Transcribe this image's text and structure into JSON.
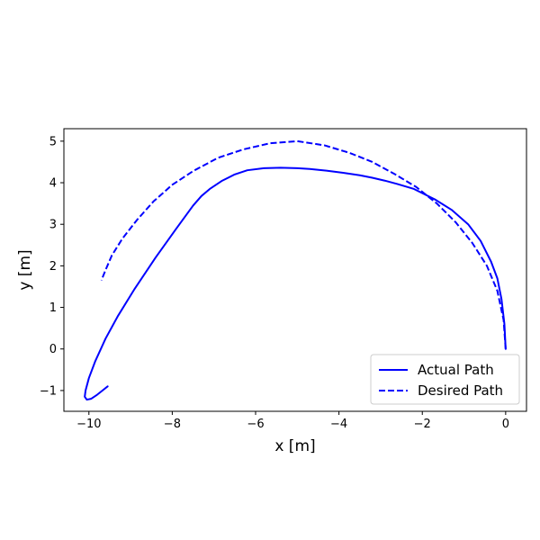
{
  "chart_data": {
    "type": "line",
    "title": "",
    "xlabel": "x [m]",
    "ylabel": "y [m]",
    "xlim": [
      -10.6,
      0.5
    ],
    "ylim": [
      -1.5,
      5.3
    ],
    "x_ticks": [
      -10,
      -8,
      -6,
      -4,
      -2,
      0
    ],
    "y_ticks": [
      -1,
      0,
      1,
      2,
      3,
      4,
      5
    ],
    "x_tick_labels": [
      "−10",
      "−8",
      "−6",
      "−4",
      "−2",
      "0"
    ],
    "y_tick_labels": [
      "−1",
      "0",
      "1",
      "2",
      "3",
      "4",
      "5"
    ],
    "grid": false,
    "legend_position": "lower-right",
    "series": [
      {
        "name": "Actual Path",
        "color": "#0000ff",
        "style": "solid",
        "x": [
          0.0,
          -0.03,
          -0.1,
          -0.2,
          -0.35,
          -0.6,
          -0.9,
          -1.3,
          -1.7,
          -2.2,
          -2.6,
          -2.9,
          -3.2,
          -3.5,
          -3.9,
          -4.3,
          -4.7,
          -5.0,
          -5.4,
          -5.8,
          -6.2,
          -6.5,
          -6.8,
          -7.1,
          -7.3,
          -7.5,
          -7.9,
          -8.4,
          -8.9,
          -9.3,
          -9.6,
          -9.85,
          -10.0,
          -10.08,
          -10.1,
          -10.05,
          -9.95,
          -9.8,
          -9.65,
          -9.55
        ],
        "y": [
          0.0,
          0.6,
          1.2,
          1.7,
          2.1,
          2.6,
          3.0,
          3.35,
          3.6,
          3.85,
          3.97,
          4.05,
          4.12,
          4.18,
          4.24,
          4.29,
          4.33,
          4.35,
          4.36,
          4.35,
          4.3,
          4.2,
          4.05,
          3.85,
          3.68,
          3.45,
          2.9,
          2.2,
          1.45,
          0.8,
          0.25,
          -0.3,
          -0.7,
          -1.0,
          -1.15,
          -1.22,
          -1.2,
          -1.1,
          -0.98,
          -0.9
        ]
      },
      {
        "name": "Desired Path",
        "color": "#0000ff",
        "style": "dashed",
        "x": [
          0.0,
          -0.05,
          -0.2,
          -0.45,
          -0.8,
          -1.2,
          -1.65,
          -2.15,
          -2.65,
          -3.2,
          -3.75,
          -4.35,
          -5.0,
          -5.65,
          -6.3,
          -6.9,
          -7.5,
          -8.0,
          -8.45,
          -8.85,
          -9.2,
          -9.45,
          -9.6,
          -9.7
        ],
        "y": [
          0.0,
          0.7,
          1.4,
          2.0,
          2.55,
          3.05,
          3.5,
          3.9,
          4.2,
          4.5,
          4.72,
          4.9,
          5.0,
          4.95,
          4.8,
          4.6,
          4.28,
          3.95,
          3.55,
          3.1,
          2.65,
          2.25,
          1.9,
          1.65
        ]
      }
    ]
  }
}
